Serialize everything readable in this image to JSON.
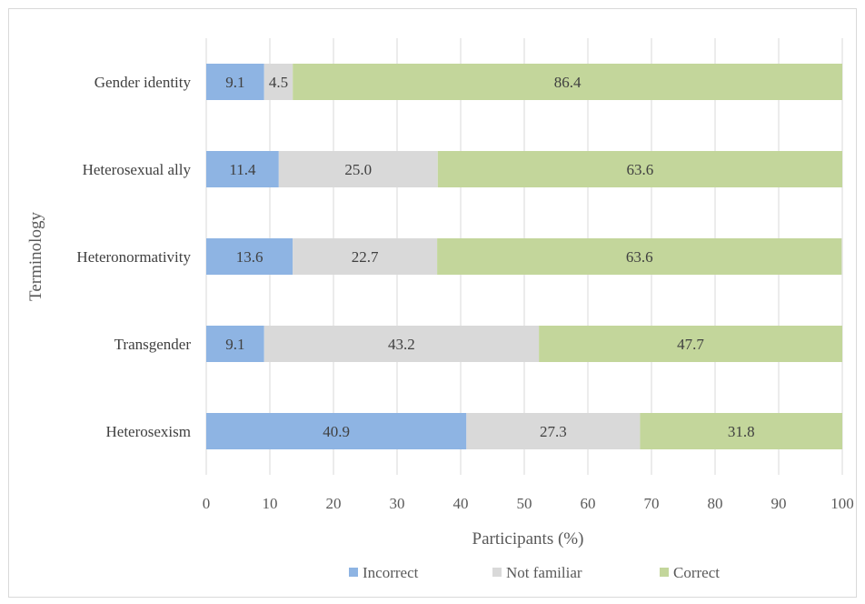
{
  "chart_data": {
    "type": "bar",
    "orientation": "horizontal",
    "stacked": true,
    "title": "",
    "xlabel": "Participants (%)",
    "ylabel": "Terminology",
    "xlim": [
      0,
      100
    ],
    "xticks": [
      0,
      10,
      20,
      30,
      40,
      50,
      60,
      70,
      80,
      90,
      100
    ],
    "grid": true,
    "legend_position": "bottom",
    "categories": [
      "Gender identity",
      "Heterosexual ally",
      "Heteronormativity",
      "Transgender",
      "Heterosexism"
    ],
    "series": [
      {
        "name": "Incorrect",
        "color": "#8eb4e3",
        "values": [
          9.1,
          11.4,
          13.6,
          9.1,
          40.9
        ]
      },
      {
        "name": "Not familiar",
        "color": "#d9d9d9",
        "values": [
          4.5,
          25.0,
          22.7,
          43.2,
          27.3
        ]
      },
      {
        "name": "Correct",
        "color": "#c3d69b",
        "values": [
          86.4,
          63.6,
          63.6,
          47.7,
          31.8
        ]
      }
    ]
  }
}
